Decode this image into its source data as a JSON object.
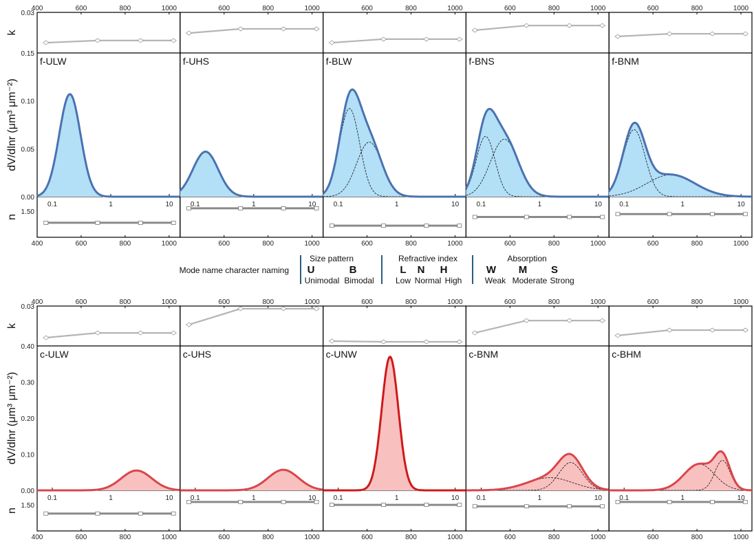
{
  "axis_labels": {
    "k": "k",
    "dist": "dV/dlnr (μm³ μm⁻²)",
    "n": "n"
  },
  "legend": {
    "title": "Mode name character naming",
    "groups": [
      {
        "header": "Size pattern",
        "codes": [
          {
            "letter": "U",
            "word": "Unimodal"
          },
          {
            "letter": "B",
            "word": "Bimodal"
          }
        ]
      },
      {
        "header": "Refractive index",
        "codes": [
          {
            "letter": "L",
            "word": "Low"
          },
          {
            "letter": "N",
            "word": "Normal"
          },
          {
            "letter": "H",
            "word": "High"
          }
        ]
      },
      {
        "header": "Absorption",
        "codes": [
          {
            "letter": "W",
            "word": "Weak"
          },
          {
            "letter": "M",
            "word": "Moderate"
          },
          {
            "letter": "S",
            "word": "Strong"
          }
        ]
      }
    ],
    "divider_color": "#2a5d80"
  },
  "chart_data": [
    {
      "type": "area",
      "row": "fine",
      "colors": {
        "fill": "#b3dff7",
        "stroke": "#4a72b0"
      },
      "wavelength_ticks": [
        "400",
        "600",
        "800",
        "1000"
      ],
      "radius_ticks": [
        "0.1",
        "1",
        "10"
      ],
      "radius_scale": "log",
      "radius_range_um": [
        0.055,
        15
      ],
      "dist_ylim": [
        0,
        0.15
      ],
      "dist_ticks": [
        "0.00",
        "0.05",
        "0.10",
        "0.15"
      ],
      "k_ylim": [
        0,
        0.03
      ],
      "k_tick": "0.03",
      "n_ylim": [
        1.41,
        1.55
      ],
      "n_tick": "1.50",
      "wavelengths_nm": [
        440,
        675,
        870,
        1020
      ],
      "panels": [
        {
          "name": "f-ULW",
          "k": [
            0.0076,
            0.0092,
            0.0092,
            0.0092
          ],
          "n": [
            1.46,
            1.46,
            1.46,
            1.46
          ],
          "modes": [
            {
              "r_um": 0.2,
              "peak": 0.107,
              "sigma_ln": 0.42
            }
          ]
        },
        {
          "name": "f-UHS",
          "k": [
            0.0147,
            0.0178,
            0.0178,
            0.0178
          ],
          "n": [
            1.51,
            1.51,
            1.51,
            1.51
          ],
          "modes": [
            {
              "r_um": 0.15,
              "peak": 0.047,
              "sigma_ln": 0.5
            }
          ]
        },
        {
          "name": "f-BLW",
          "k": [
            0.0076,
            0.0102,
            0.0102,
            0.0102
          ],
          "n": [
            1.45,
            1.45,
            1.45,
            1.45
          ],
          "modes": [
            {
              "r_um": 0.156,
              "peak": 0.092,
              "sigma_ln": 0.4
            },
            {
              "r_um": 0.34,
              "peak": 0.057,
              "sigma_ln": 0.5
            }
          ]
        },
        {
          "name": "f-BNS",
          "k": [
            0.0168,
            0.0203,
            0.0203,
            0.0203
          ],
          "n": [
            1.48,
            1.48,
            1.48,
            1.48
          ],
          "modes": [
            {
              "r_um": 0.119,
              "peak": 0.063,
              "sigma_ln": 0.37
            },
            {
              "r_um": 0.25,
              "peak": 0.06,
              "sigma_ln": 0.55
            }
          ]
        },
        {
          "name": "f-BNM",
          "k": [
            0.0122,
            0.0142,
            0.0142,
            0.0142
          ],
          "n": [
            1.49,
            1.49,
            1.49,
            1.49
          ],
          "modes": [
            {
              "r_um": 0.148,
              "peak": 0.07,
              "sigma_ln": 0.43
            },
            {
              "r_um": 0.63,
              "peak": 0.023,
              "sigma_ln": 0.94
            }
          ]
        }
      ]
    },
    {
      "type": "area",
      "row": "coarse",
      "colors": {
        "fill": "#f9c0c0",
        "stroke": "#d9454a",
        "stroke_strong": "#d01818"
      },
      "wavelength_ticks": [
        "400",
        "600",
        "800",
        "1000"
      ],
      "radius_ticks": [
        "0.1",
        "1",
        "10"
      ],
      "radius_scale": "log",
      "radius_range_um": [
        0.055,
        15
      ],
      "dist_ylim": [
        0,
        0.4
      ],
      "dist_ticks": [
        "0.00",
        "0.10",
        "0.20",
        "0.30",
        "0.40"
      ],
      "k_ylim": [
        0,
        0.03
      ],
      "k_tick": "0.03",
      "n_ylim": [
        1.41,
        1.55
      ],
      "n_tick": "1.50",
      "wavelengths_nm": [
        440,
        675,
        870,
        1020
      ],
      "panels": [
        {
          "name": "c-ULW",
          "k": [
            0.0062,
            0.0098,
            0.0098,
            0.0098
          ],
          "n": [
            1.47,
            1.47,
            1.47,
            1.47
          ],
          "modes": [
            {
              "r_um": 2.76,
              "peak": 0.055,
              "sigma_ln": 0.6
            }
          ]
        },
        {
          "name": "c-UHS",
          "k": [
            0.016,
            0.028,
            0.028,
            0.028
          ],
          "n": [
            1.51,
            1.51,
            1.51,
            1.51
          ],
          "modes": [
            {
              "r_um": 3.2,
              "peak": 0.057,
              "sigma_ln": 0.6
            }
          ]
        },
        {
          "name": "c-UNW",
          "k": [
            0.0036,
            0.0031,
            0.0031,
            0.0031
          ],
          "n": [
            1.5,
            1.5,
            1.5,
            1.5
          ],
          "modes": [
            {
              "r_um": 0.77,
              "peak": 0.37,
              "sigma_ln": 0.33
            }
          ]
        },
        {
          "name": "c-BNM",
          "k": [
            0.0098,
            0.0191,
            0.0191,
            0.0191
          ],
          "n": [
            1.495,
            1.495,
            1.495,
            1.495
          ],
          "modes": [
            {
              "r_um": 1.5,
              "peak": 0.035,
              "sigma_ln": 0.9
            },
            {
              "r_um": 3.4,
              "peak": 0.077,
              "sigma_ln": 0.47
            }
          ]
        },
        {
          "name": "c-BHM",
          "k": [
            0.0078,
            0.0119,
            0.0119,
            0.0119
          ],
          "n": [
            1.51,
            1.51,
            1.51,
            1.51
          ],
          "modes": [
            {
              "r_um": 1.93,
              "peak": 0.073,
              "sigma_ln": 0.6
            },
            {
              "r_um": 4.8,
              "peak": 0.083,
              "sigma_ln": 0.3
            }
          ]
        }
      ]
    }
  ]
}
